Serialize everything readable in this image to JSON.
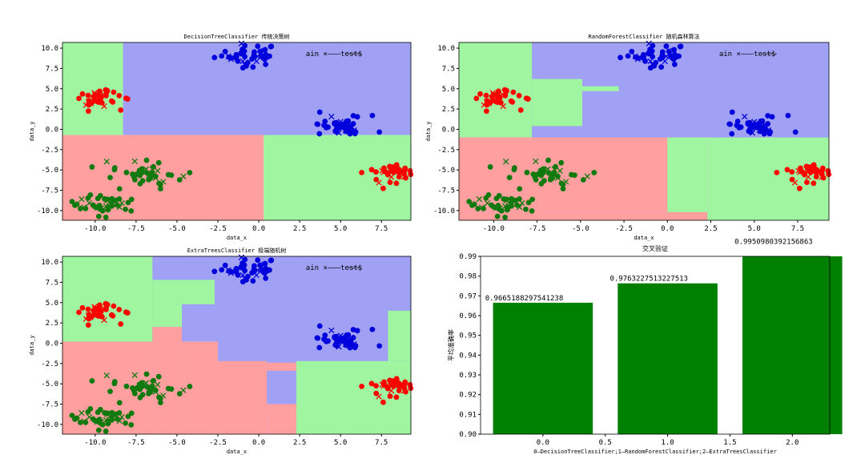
{
  "chart_data": [
    {
      "type": "scatter",
      "panel": "top-left",
      "title": "DecisionTreeClassifier  传统决策树",
      "xlabel": "data_x",
      "ylabel": "data_y",
      "xlim": [
        -12,
        9.3
      ],
      "ylim": [
        -11.2,
        10.7
      ],
      "xticks": [
        "-10.0",
        "-7.5",
        "-5.0",
        "-2.5",
        "0.0",
        "2.5",
        "5.0",
        "7.5"
      ],
      "yticks": [
        "10.0",
        "7.5",
        "5.0",
        "2.5",
        "0.0",
        "-2.5",
        "-5.0",
        "-7.5",
        "-10.0"
      ],
      "legend_text": "ain  ×———test$",
      "regions": [
        {
          "c": "g",
          "x": [
            -12,
            -8.3
          ],
          "y": [
            -0.7,
            10.7
          ]
        },
        {
          "c": "b",
          "x": [
            -8.3,
            9.3
          ],
          "y": [
            -0.7,
            10.7
          ]
        },
        {
          "c": "r",
          "x": [
            -12,
            0.3
          ],
          "y": [
            -11.2,
            -0.7
          ]
        },
        {
          "c": "g",
          "x": [
            0.3,
            9.3
          ],
          "y": [
            -11.2,
            -0.7
          ]
        }
      ]
    },
    {
      "type": "scatter",
      "panel": "top-right",
      "title": "RandomForestClassifier  随机森林算法",
      "xlabel": "data_x",
      "ylabel": "data_y",
      "xlim": [
        -12,
        9.3
      ],
      "ylim": [
        -11.2,
        10.7
      ],
      "xticks": [
        "-10.0",
        "-7.5",
        "-5.0",
        "-2.5",
        "0.0",
        "2.5",
        "5.0",
        "7.5"
      ],
      "yticks": [
        "10.0",
        "7.5",
        "5.0",
        "2.5",
        "0.0",
        "-2.5",
        "-5.0",
        "-7.5",
        "-10.0"
      ],
      "legend_text": "ain  ×———test$",
      "regions": [
        {
          "c": "b",
          "x": [
            -12,
            9.3
          ],
          "y": [
            -11.2,
            10.7
          ]
        },
        {
          "c": "g",
          "x": [
            -12,
            -7.8
          ],
          "y": [
            -1,
            10.7
          ]
        },
        {
          "c": "g",
          "x": [
            -7.8,
            -4.9
          ],
          "y": [
            0.4,
            6.2
          ]
        },
        {
          "c": "g",
          "x": [
            -4.9,
            -2.8
          ],
          "y": [
            4.7,
            5.3
          ]
        },
        {
          "c": "r",
          "x": [
            -12,
            2.3
          ],
          "y": [
            -10.2,
            -1
          ]
        },
        {
          "c": "r",
          "x": [
            -12,
            2.3
          ],
          "y": [
            -11.2,
            -10.2
          ]
        },
        {
          "c": "g",
          "x": [
            0,
            2.3
          ],
          "y": [
            -10.2,
            -1
          ]
        },
        {
          "c": "g",
          "x": [
            2.3,
            9.3
          ],
          "y": [
            -11.2,
            -1
          ]
        }
      ]
    },
    {
      "type": "scatter",
      "panel": "bottom-left",
      "title": "ExtraTreesClassifier  极端随机树",
      "xlabel": "data_x",
      "ylabel": "data_y",
      "xlim": [
        -12,
        9.3
      ],
      "ylim": [
        -11.2,
        10.7
      ],
      "xticks": [
        "-10.0",
        "-7.5",
        "-5.0",
        "-2.5",
        "0.0",
        "2.5",
        "5.0",
        "7.5"
      ],
      "yticks": [
        "10.0",
        "7.5",
        "5.0",
        "2.5",
        "0.0",
        "-2.5",
        "-5.0",
        "-7.5",
        "-10.0"
      ],
      "legend_text": "ain  ×———test$",
      "regions": [
        {
          "c": "b",
          "x": [
            -12,
            9.3
          ],
          "y": [
            -11.2,
            10.7
          ]
        },
        {
          "c": "g",
          "x": [
            -12,
            -6.5
          ],
          "y": [
            0.2,
            10.7
          ]
        },
        {
          "c": "g",
          "x": [
            -6.5,
            -2.7
          ],
          "y": [
            4.8,
            7.8
          ]
        },
        {
          "c": "g",
          "x": [
            -6.5,
            -4.7
          ],
          "y": [
            2,
            4.8
          ]
        },
        {
          "c": "r",
          "x": [
            -12,
            -6.5
          ],
          "y": [
            -11.2,
            0.2
          ]
        },
        {
          "c": "r",
          "x": [
            -6.5,
            -4.7
          ],
          "y": [
            -11.2,
            2
          ]
        },
        {
          "c": "r",
          "x": [
            -4.7,
            -2.5
          ],
          "y": [
            -11.2,
            0.2
          ]
        },
        {
          "c": "r",
          "x": [
            -2.5,
            0.5
          ],
          "y": [
            -11.2,
            -2.2
          ]
        },
        {
          "c": "r",
          "x": [
            0.5,
            2.3
          ],
          "y": [
            -3.4,
            -2.4
          ]
        },
        {
          "c": "r",
          "x": [
            0.5,
            2.3
          ],
          "y": [
            -11.2,
            -7.5
          ]
        },
        {
          "c": "g",
          "x": [
            2.3,
            9.3
          ],
          "y": [
            -11.2,
            -2.2
          ]
        },
        {
          "c": "g",
          "x": [
            7.9,
            9.3
          ],
          "y": [
            -2.2,
            4
          ]
        },
        {
          "c": "b",
          "x": [
            0.5,
            1.9
          ],
          "y": [
            -7.5,
            -3.4
          ]
        }
      ]
    },
    {
      "type": "bar",
      "panel": "bottom-right",
      "title": "交叉验证",
      "xlabel": "0—DecisionTreeClassifier;1—RandomForestClassifier;2—ExtraTreesClassifier",
      "ylabel": "平均准确率",
      "categories": [
        0,
        1,
        2
      ],
      "values": [
        0.9665188297541238,
        0.9763227513227513,
        0.9950980392156863
      ],
      "value_labels": [
        "0.9665188297541238",
        "0.9763227513227513",
        "0.9950980392156863"
      ],
      "bar_color": "#008000",
      "xlim": [
        -0.5,
        2.3
      ],
      "ylim": [
        0.9,
        0.99
      ],
      "xticks": [
        "0.0",
        "0.5",
        "1.0",
        "1.5",
        "2.0"
      ],
      "yticks": [
        "0.99",
        "0.98",
        "0.97",
        "0.96",
        "0.95",
        "0.94",
        "0.93",
        "0.92",
        "0.91",
        "0.90"
      ]
    }
  ],
  "region_colors": {
    "r": "#ff9f9f",
    "g": "#9ff5a0",
    "b": "#a0a0f5"
  },
  "point_colors": {
    "red": "#ff0000",
    "green": "#107a10",
    "blue": "#0000dd"
  },
  "clusters": [
    {
      "color": "blue",
      "cx": -0.7,
      "cy": 9.2,
      "sx": 1.3,
      "sy": 0.9,
      "n": 45
    },
    {
      "color": "red",
      "cx": -9.8,
      "cy": 3.7,
      "sx": 0.9,
      "sy": 0.8,
      "n": 40
    },
    {
      "color": "blue",
      "cx": 5.0,
      "cy": 0.4,
      "sx": 1.1,
      "sy": 0.9,
      "n": 45
    },
    {
      "color": "green",
      "cx": -6.8,
      "cy": -5.5,
      "sx": 1.3,
      "sy": 1.0,
      "n": 45
    },
    {
      "color": "green",
      "cx": -9.5,
      "cy": -9.2,
      "sx": 1.3,
      "sy": 0.9,
      "n": 45
    },
    {
      "color": "red",
      "cx": 7.9,
      "cy": -5.3,
      "sx": 1.0,
      "sy": 1.0,
      "n": 45
    }
  ]
}
